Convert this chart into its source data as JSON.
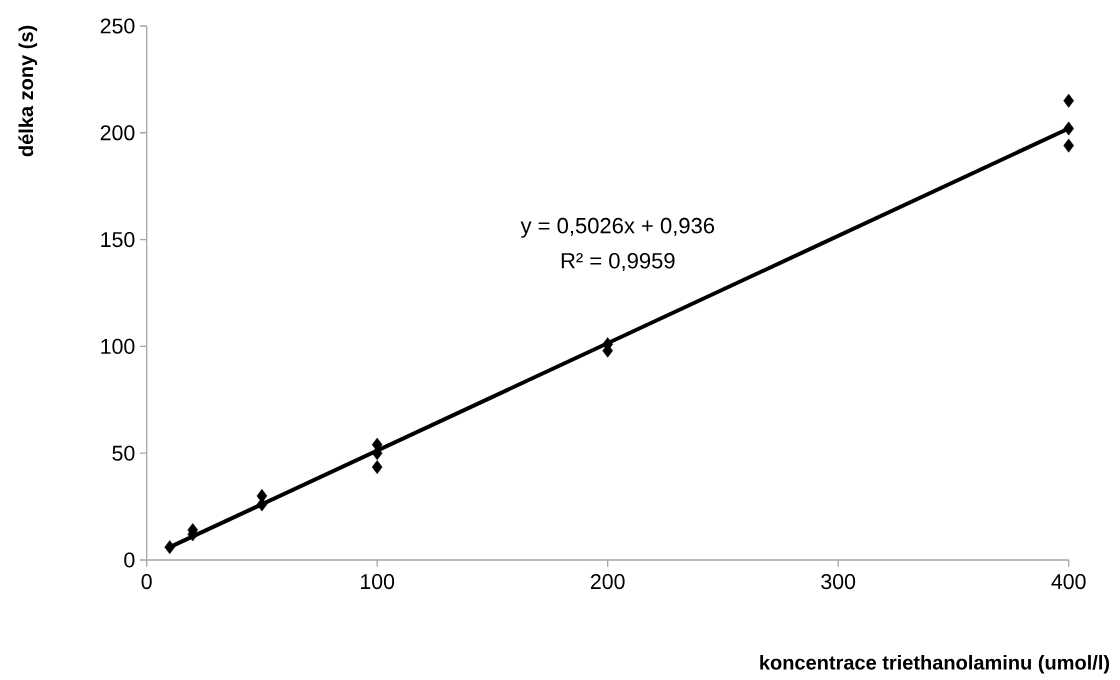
{
  "chart_data": {
    "type": "scatter",
    "xlabel": "koncentrace triethanolaminu (umol/l)",
    "ylabel": "délka zony (s)",
    "xlim": [
      0,
      400
    ],
    "ylim": [
      0,
      250
    ],
    "xticks": [
      0,
      100,
      200,
      300,
      400
    ],
    "yticks": [
      0,
      50,
      100,
      150,
      200,
      250
    ],
    "grid": false,
    "marker": "diamond",
    "annotations": [
      "y = 0,5026x + 0,936",
      "R² = 0,9959"
    ],
    "series": [
      {
        "color": "#000000",
        "x": [
          10,
          20,
          20,
          50,
          50,
          100,
          100,
          100,
          200,
          200,
          400,
          400,
          400
        ],
        "values": [
          6,
          14,
          12,
          30,
          26,
          54,
          50,
          43.5,
          101,
          98,
          215,
          202,
          194
        ]
      },
      {
        "type": "line",
        "color": "#000000",
        "marker": "none",
        "x": [
          10,
          400
        ],
        "values": [
          6,
          202
        ]
      }
    ]
  }
}
